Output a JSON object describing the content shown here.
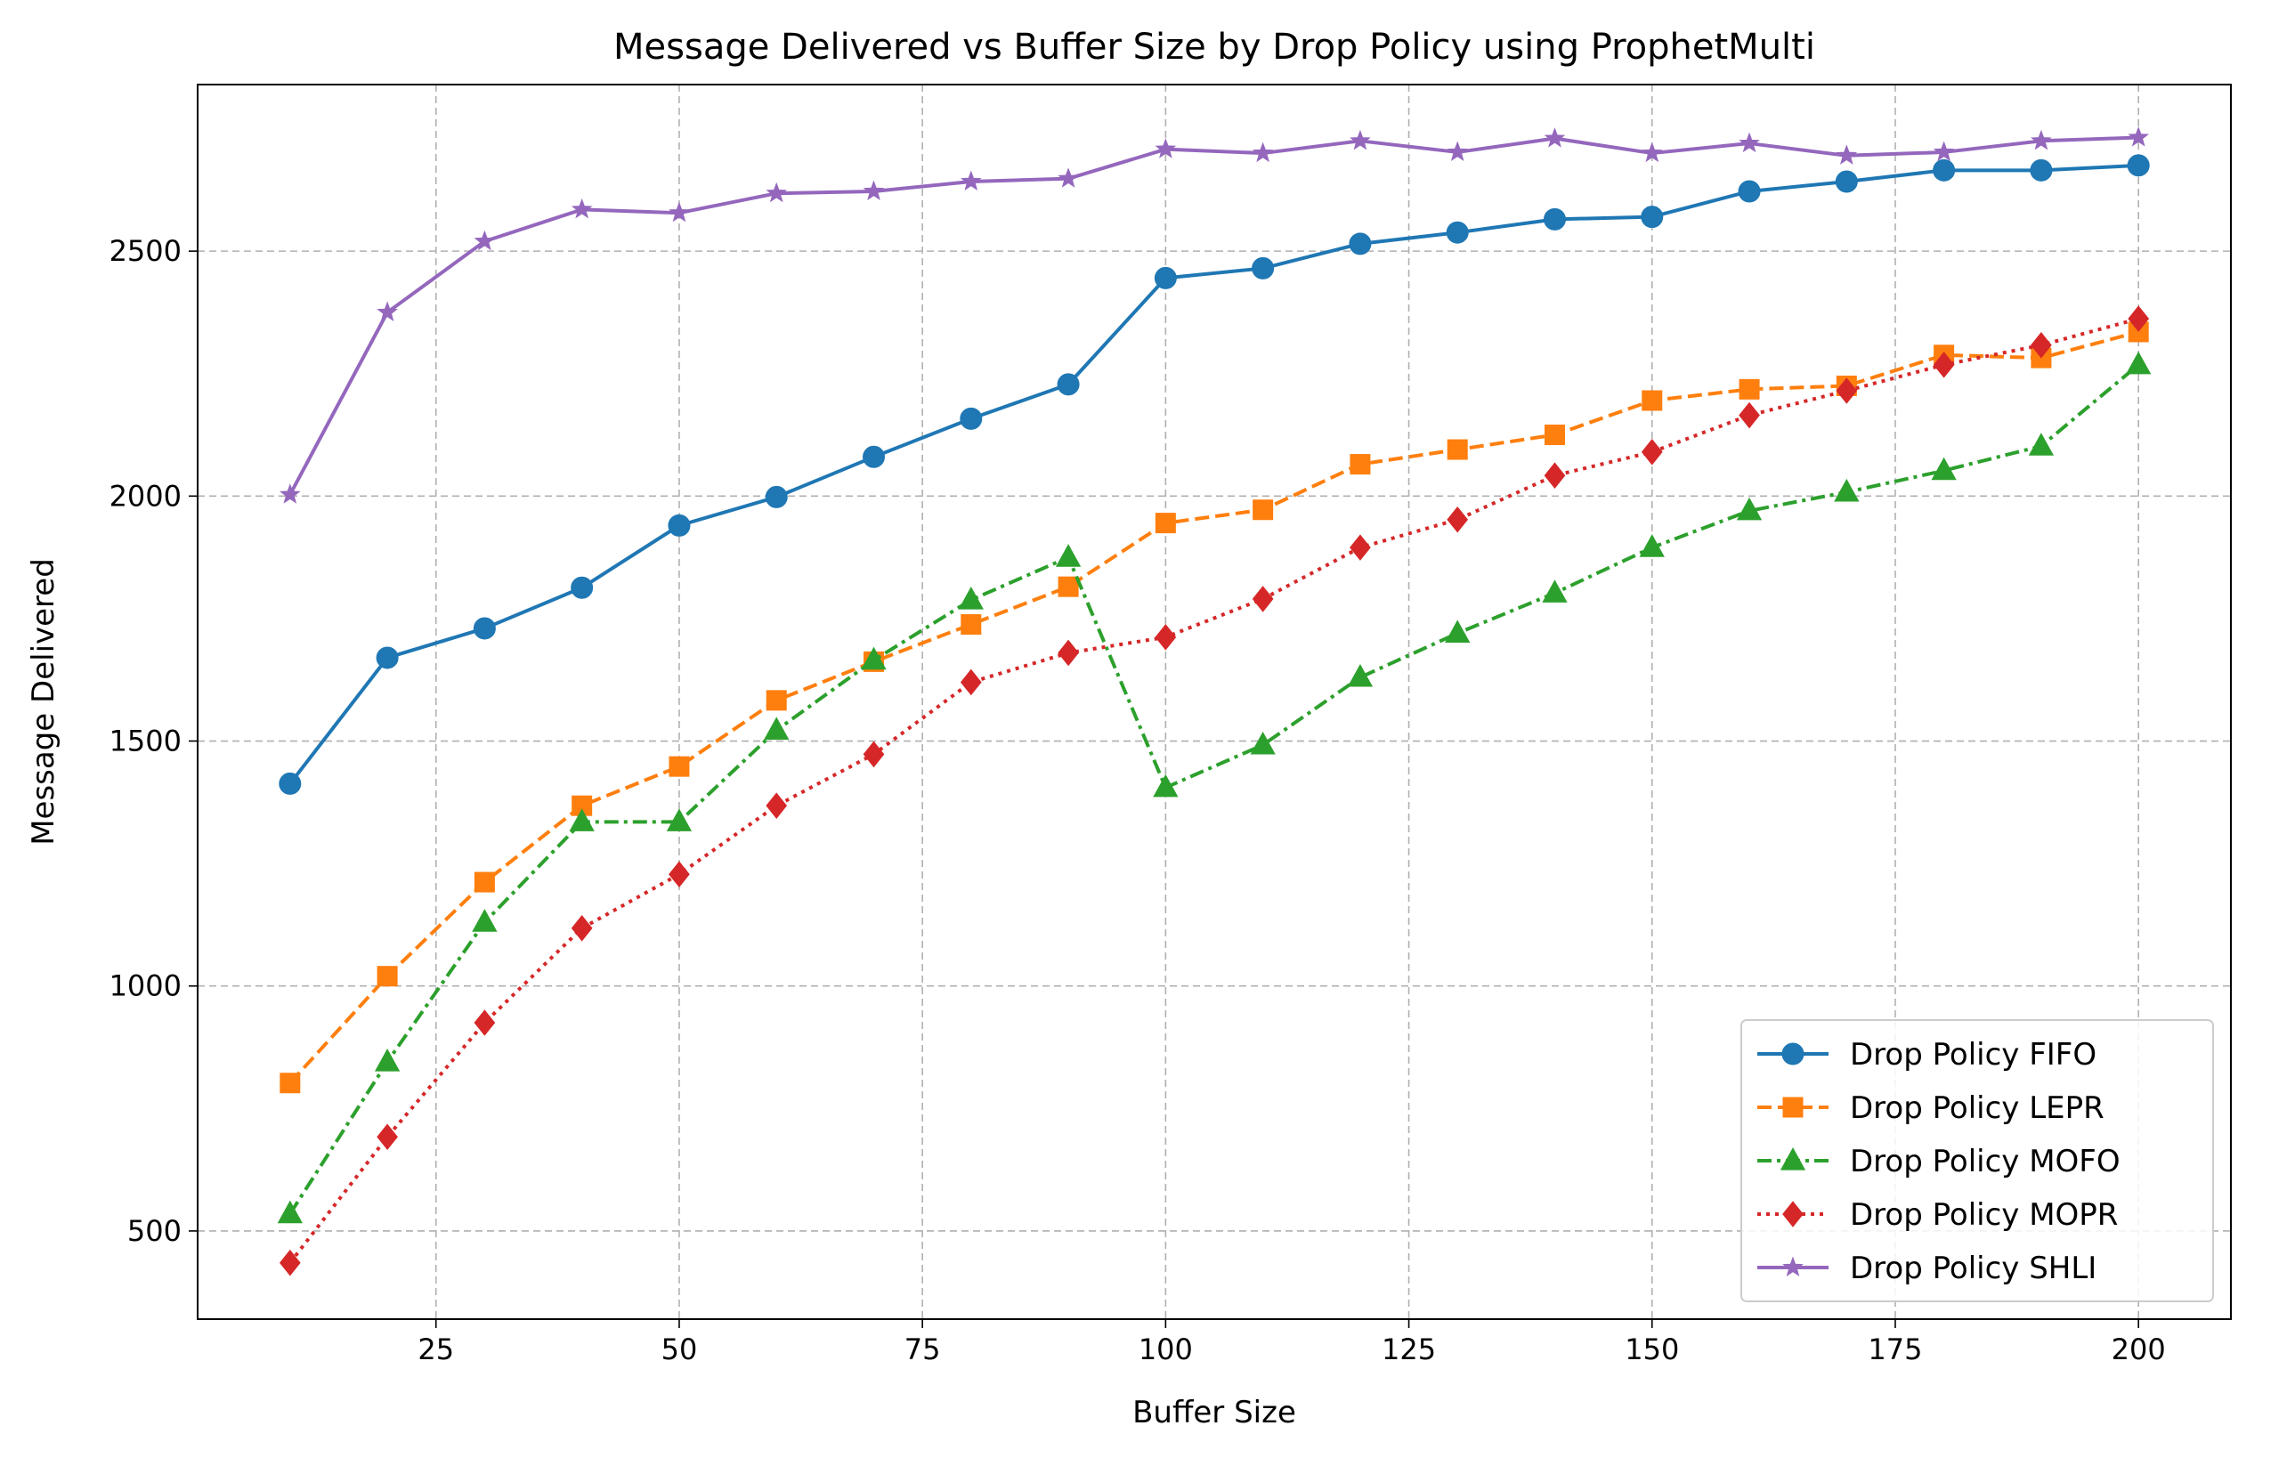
{
  "chart_data": {
    "type": "line",
    "title": "Message Delivered vs Buffer Size by Drop Policy using ProphetMulti",
    "xlabel": "Buffer Size",
    "ylabel": "Message Delivered",
    "xlim": [
      0.5,
      209.5
    ],
    "ylim": [
      320,
      2840
    ],
    "xticks": [
      25,
      50,
      75,
      100,
      125,
      150,
      175,
      200
    ],
    "yticks": [
      500,
      1000,
      1500,
      2000,
      2500
    ],
    "grid": true,
    "legend_position": "lower-right",
    "x": [
      10,
      20,
      30,
      40,
      50,
      60,
      70,
      80,
      90,
      100,
      110,
      120,
      130,
      140,
      150,
      160,
      170,
      180,
      190,
      200
    ],
    "series": [
      {
        "name": "Drop Policy FIFO",
        "color": "#1f77b4",
        "marker": "circle",
        "line_style": "solid",
        "values": [
          1413,
          1670,
          1730,
          1813,
          1940,
          1998,
          2080,
          2158,
          2228,
          2445,
          2465,
          2515,
          2538,
          2565,
          2570,
          2622,
          2642,
          2665,
          2665,
          2675
        ]
      },
      {
        "name": "Drop Policy LEPR",
        "color": "#ff7f0e",
        "marker": "square",
        "line_style": "dashed",
        "values": [
          802,
          1020,
          1212,
          1368,
          1448,
          1583,
          1662,
          1738,
          1815,
          1945,
          1972,
          2065,
          2095,
          2125,
          2195,
          2218,
          2225,
          2288,
          2282,
          2335
        ]
      },
      {
        "name": "Drop Policy MOFO",
        "color": "#2ca02c",
        "marker": "triangle",
        "line_style": "dashdot",
        "values": [
          535,
          845,
          1130,
          1335,
          1335,
          1522,
          1665,
          1788,
          1875,
          1405,
          1492,
          1630,
          1720,
          1802,
          1895,
          1970,
          2008,
          2052,
          2102,
          2268
        ]
      },
      {
        "name": "Drop Policy MOPR",
        "color": "#d62728",
        "marker": "diamond",
        "line_style": "dotted",
        "values": [
          435,
          692,
          925,
          1118,
          1228,
          1368,
          1473,
          1620,
          1680,
          1712,
          1790,
          1895,
          1952,
          2042,
          2090,
          2165,
          2215,
          2268,
          2308,
          2362
        ]
      },
      {
        "name": "Drop Policy SHLI",
        "color": "#9467bd",
        "marker": "star",
        "line_style": "solid",
        "values": [
          2003,
          2375,
          2520,
          2585,
          2578,
          2618,
          2622,
          2642,
          2648,
          2708,
          2700,
          2725,
          2702,
          2730,
          2700,
          2720,
          2695,
          2702,
          2725,
          2732
        ]
      }
    ]
  }
}
